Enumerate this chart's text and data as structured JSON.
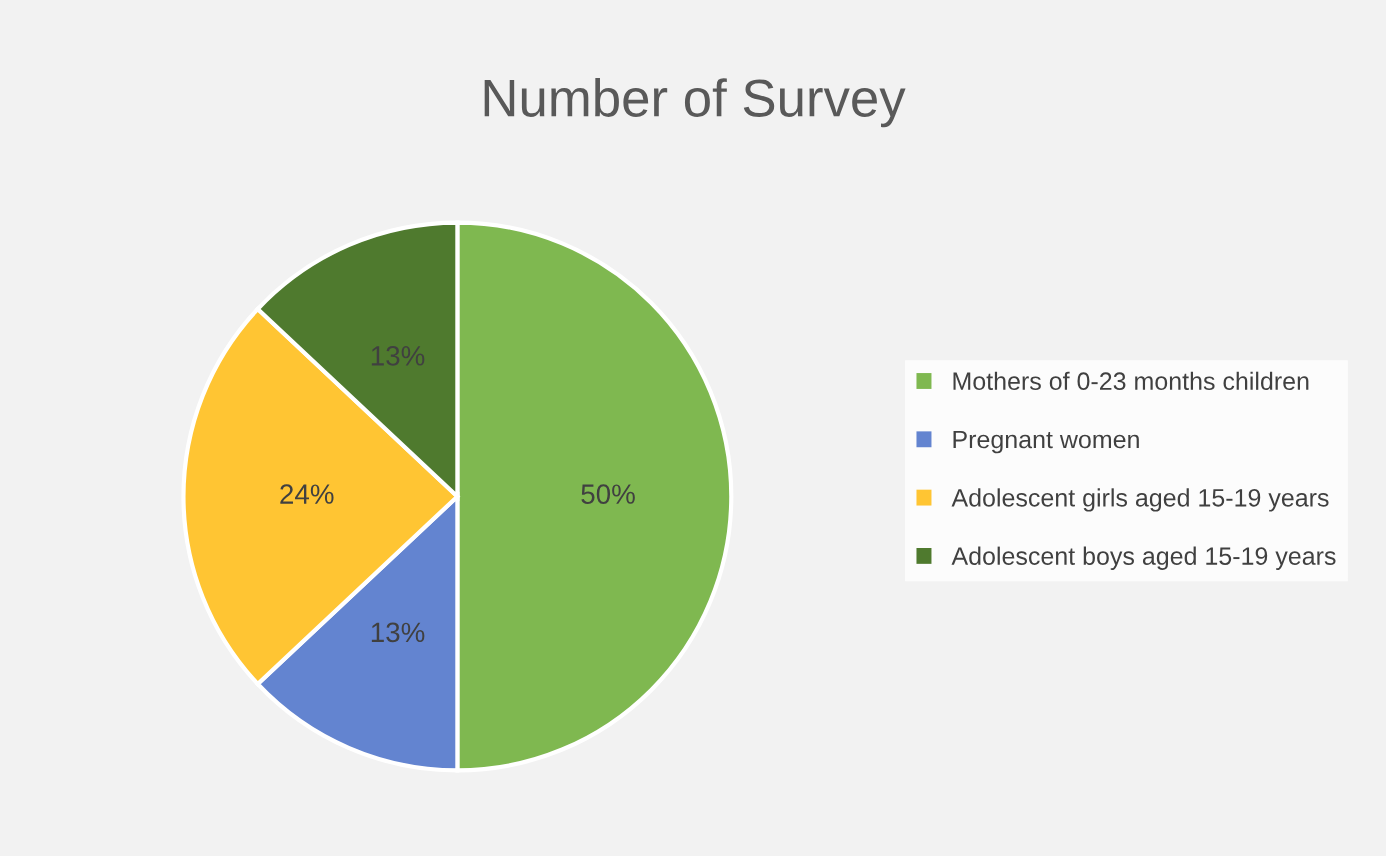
{
  "chart_data": {
    "type": "pie",
    "title": "Number of Survey",
    "categories": [
      "Mothers of 0-23 months children",
      "Pregnant women",
      "Adolescent girls aged 15-19 years",
      "Adolescent boys aged 15-19 years"
    ],
    "values": [
      50,
      13,
      24,
      13
    ],
    "colors": [
      "#7fb850",
      "#6384d0",
      "#ffc533",
      "#4f7a2e"
    ],
    "value_labels": [
      "50%",
      "13%",
      "24%",
      "13%"
    ],
    "legend": "right"
  }
}
